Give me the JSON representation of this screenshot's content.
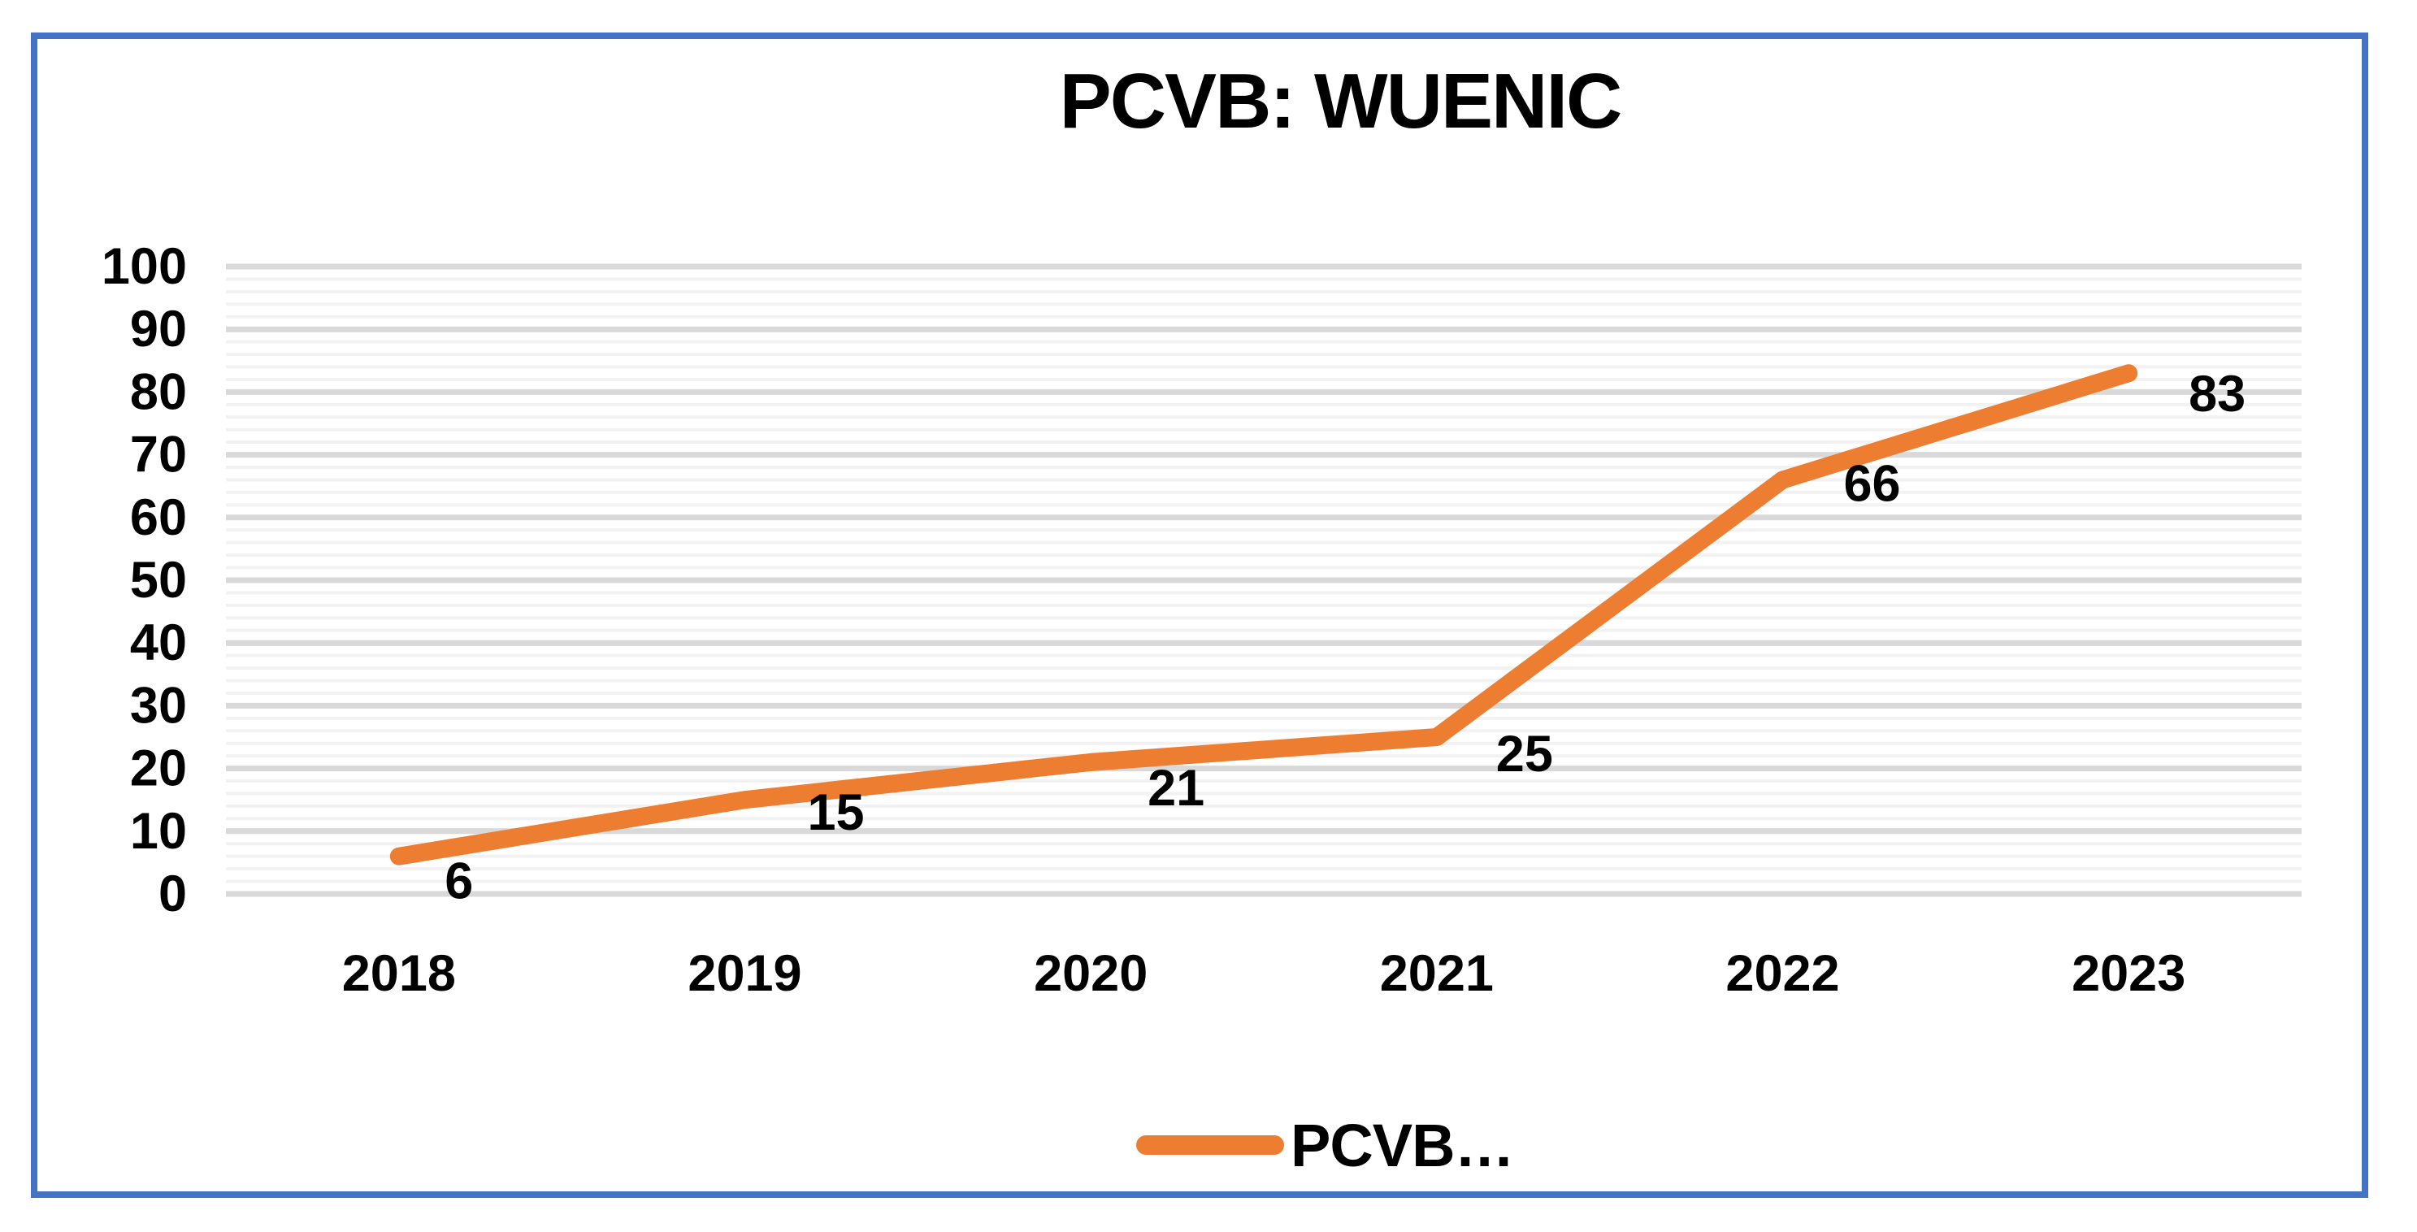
{
  "window": {
    "background": "#FFFFFF",
    "frame_border_color": "#4472C4"
  },
  "chart_data": {
    "type": "line",
    "title": "PCVB: WUENIC",
    "categories": [
      "2018",
      "2019",
      "2020",
      "2021",
      "2022",
      "2023"
    ],
    "series": [
      {
        "name": "PCVB…",
        "color": "#ED7D31",
        "values": [
          6,
          15,
          21,
          25,
          66,
          83
        ],
        "data_labels": [
          "6",
          "15",
          "21",
          "25",
          "66",
          "83"
        ]
      }
    ],
    "xlabel": "",
    "ylabel": "",
    "ylim": [
      0,
      100
    ],
    "y_major_unit": 10,
    "y_minor_unit": 2,
    "y_tick_labels": [
      "0",
      "10",
      "20",
      "30",
      "40",
      "50",
      "60",
      "70",
      "80",
      "90",
      "100"
    ],
    "grid": {
      "major_on": true,
      "minor_on": true,
      "major_color": "#D9D9D9",
      "minor_color": "#F2F2F2"
    },
    "legend": {
      "position": "bottom",
      "label": "PCVB…",
      "swatch_color": "#ED7D31"
    }
  }
}
